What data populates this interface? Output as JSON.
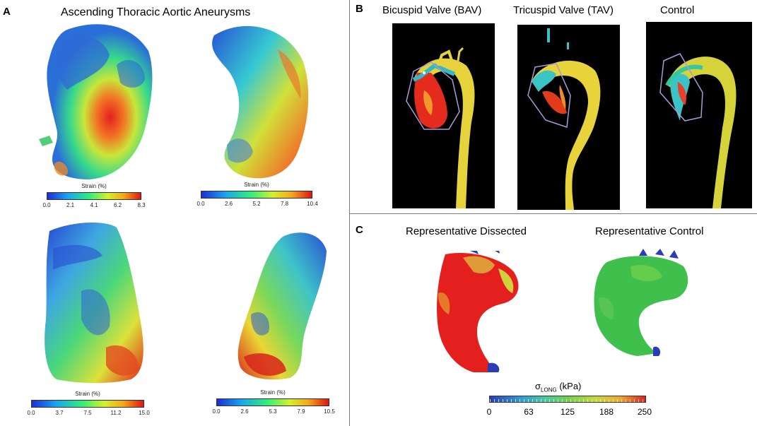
{
  "panels": {
    "A": {
      "letter": "A",
      "title": "Ascending Thoracic Aortic Aneurysms",
      "colorbars": [
        {
          "label": "Strain (%)",
          "ticks": [
            "0.0",
            "2.1",
            "4.1",
            "6.2",
            "8.3"
          ]
        },
        {
          "label": "Strain (%)",
          "ticks": [
            "0.0",
            "2.6",
            "5.2",
            "7.8",
            "10.4"
          ]
        },
        {
          "label": "Strain (%)",
          "ticks": [
            "0.0",
            "3.7",
            "7.5",
            "11.2",
            "15.0"
          ]
        },
        {
          "label": "Strain (%)",
          "ticks": [
            "0.0",
            "2.6",
            "5.3",
            "7.9",
            "10.5"
          ]
        }
      ]
    },
    "B": {
      "letter": "B",
      "titles": [
        "Bicuspid Valve (BAV)",
        "Tricuspid Valve (TAV)",
        "Control"
      ]
    },
    "C": {
      "letter": "C",
      "titles": [
        "Representative Dissected",
        "Representative Control"
      ],
      "colorbar_symbol": "σ",
      "colorbar_subscript": "LONG",
      "colorbar_unit": " (kPa)",
      "colorbar_ticks": [
        "0",
        "63",
        "125",
        "188",
        "250"
      ]
    }
  },
  "colors": {
    "low": "#1e2cd6",
    "mid": "#2ff07a",
    "high": "#e01414"
  }
}
